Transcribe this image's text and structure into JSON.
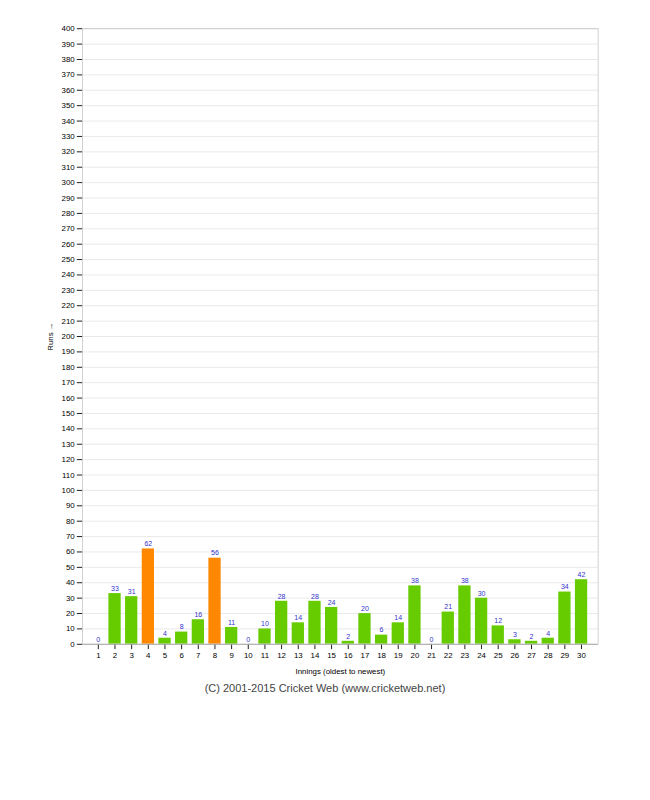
{
  "chart_data": {
    "type": "bar",
    "xlabel": "Innings (oldest to newest)",
    "ylabel": "Runs",
    "caption": "(C) 2001-2015 Cricket Web (www.cricketweb.net)",
    "categories": [
      "1",
      "2",
      "3",
      "4",
      "5",
      "6",
      "7",
      "8",
      "9",
      "10",
      "11",
      "12",
      "13",
      "14",
      "15",
      "16",
      "17",
      "18",
      "19",
      "20",
      "21",
      "22",
      "23",
      "24",
      "25",
      "26",
      "27",
      "28",
      "29",
      "30"
    ],
    "values": [
      0,
      33,
      31,
      62,
      4,
      8,
      16,
      56,
      11,
      0,
      10,
      28,
      14,
      28,
      24,
      2,
      20,
      6,
      14,
      38,
      0,
      21,
      38,
      30,
      12,
      3,
      2,
      4,
      34,
      42
    ],
    "colors": [
      "#66cc00",
      "#66cc00",
      "#66cc00",
      "#ff8800",
      "#66cc00",
      "#66cc00",
      "#66cc00",
      "#ff8800",
      "#66cc00",
      "#66cc00",
      "#66cc00",
      "#66cc00",
      "#66cc00",
      "#66cc00",
      "#66cc00",
      "#66cc00",
      "#66cc00",
      "#66cc00",
      "#66cc00",
      "#66cc00",
      "#66cc00",
      "#66cc00",
      "#66cc00",
      "#66cc00",
      "#66cc00",
      "#66cc00",
      "#66cc00",
      "#66cc00",
      "#66cc00",
      "#66cc00"
    ],
    "ylim": [
      0,
      400
    ],
    "yticks": [
      0,
      10,
      20,
      30,
      40,
      50,
      60,
      70,
      80,
      90,
      100,
      110,
      120,
      130,
      140,
      150,
      160,
      170,
      180,
      190,
      200,
      210,
      220,
      230,
      240,
      250,
      260,
      270,
      280,
      290,
      300,
      310,
      320,
      330,
      340,
      350,
      360,
      370,
      380,
      390,
      400
    ],
    "grid": true,
    "data_labels": true
  }
}
